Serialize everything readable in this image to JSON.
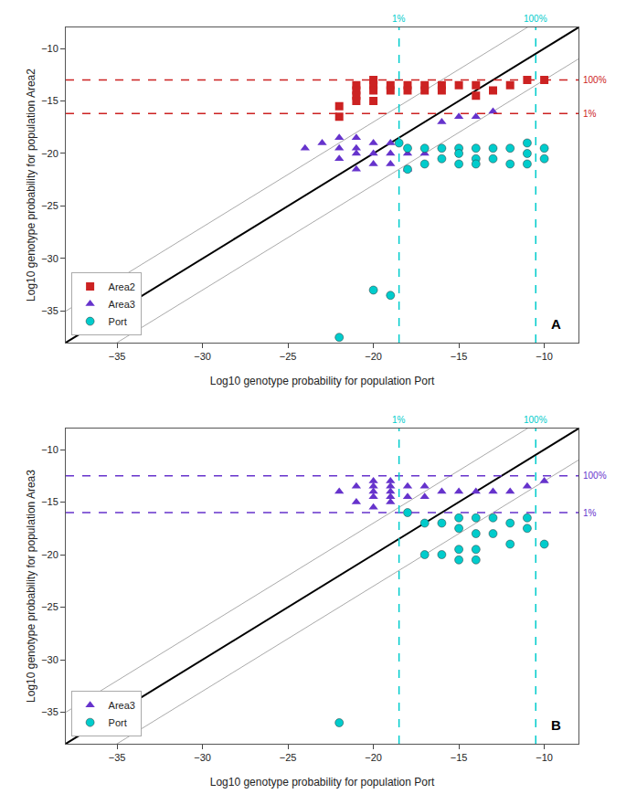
{
  "chart_data": [
    {
      "type": "scatter",
      "xlabel": "Log10 genotype probability for population Port",
      "ylabel": "Log10 genotype probability for population Area2",
      "xlim": [
        -38,
        -8
      ],
      "ylim": [
        -38,
        -8
      ],
      "xticks": [
        -35,
        -30,
        -25,
        -20,
        -15,
        -10
      ],
      "yticks": [
        -35,
        -30,
        -25,
        -20,
        -15,
        -10
      ],
      "grid": false,
      "legend": "lower left",
      "panel_label": "A",
      "diagonal_offset": 3.0,
      "hlines": [
        {
          "value": -13.0,
          "label": "100%",
          "color": "#cc2222",
          "line_style": "dashed"
        },
        {
          "value": -16.2,
          "label": "1%",
          "color": "#cc2222",
          "line_style": "dashed"
        }
      ],
      "vlines": [
        {
          "value": -18.5,
          "label": "1%",
          "color": "#00cccc",
          "line_style": "dashed"
        },
        {
          "value": -10.5,
          "label": "100%",
          "color": "#00cccc",
          "line_style": "dashed"
        }
      ],
      "series": [
        {
          "name": "Area2",
          "color": "#cc2222",
          "marker": "square",
          "x": [
            -22,
            -22,
            -21,
            -21,
            -21,
            -21,
            -20,
            -20,
            -20,
            -20,
            -19,
            -19,
            -18,
            -18,
            -17,
            -17,
            -16,
            -16,
            -15,
            -14,
            -14,
            -13,
            -12,
            -11,
            -10
          ],
          "values": [
            -15.5,
            -16.5,
            -13.5,
            -14.0,
            -14.5,
            -15.0,
            -13.0,
            -13.5,
            -14.0,
            -15.0,
            -13.5,
            -14.0,
            -13.5,
            -14.0,
            -13.5,
            -14.0,
            -13.5,
            -14.0,
            -13.5,
            -13.5,
            -14.5,
            -14.0,
            -13.5,
            -13.0,
            -13.0
          ]
        },
        {
          "name": "Area3",
          "color": "#6633cc",
          "marker": "triangle-up",
          "x": [
            -24,
            -23,
            -22,
            -22,
            -22,
            -21,
            -21,
            -21,
            -21,
            -20,
            -20,
            -20,
            -19,
            -19,
            -19,
            -18,
            -18,
            -17,
            -16,
            -15,
            -14,
            -13
          ],
          "values": [
            -19.5,
            -19.0,
            -18.5,
            -19.5,
            -20.5,
            -18.5,
            -19.5,
            -20.0,
            -21.5,
            -19.0,
            -20.0,
            -21.0,
            -19.0,
            -20.0,
            -21.0,
            -20.0,
            -21.5,
            -20.0,
            -17.0,
            -16.5,
            -16.5,
            -16.0
          ]
        },
        {
          "name": "Port",
          "color": "#00cccc",
          "marker": "circle",
          "x": [
            -22,
            -20,
            -19,
            -18.5,
            -18,
            -18,
            -17,
            -17,
            -16,
            -16,
            -15,
            -15,
            -15,
            -14,
            -14,
            -14,
            -13,
            -13,
            -12,
            -12,
            -11,
            -11,
            -11,
            -10,
            -10
          ],
          "values": [
            -37.5,
            -33.0,
            -33.5,
            -19.0,
            -19.5,
            -21.5,
            -19.5,
            -21.0,
            -19.5,
            -20.5,
            -19.5,
            -20.0,
            -21.0,
            -19.5,
            -20.5,
            -21.0,
            -19.5,
            -20.5,
            -19.5,
            -21.0,
            -19.0,
            -20.0,
            -21.0,
            -19.5,
            -20.5
          ]
        }
      ]
    },
    {
      "type": "scatter",
      "xlabel": "Log10 genotype probability for population Port",
      "ylabel": "Log10 genotype probability for population Area3",
      "xlim": [
        -38,
        -8
      ],
      "ylim": [
        -38,
        -8
      ],
      "xticks": [
        -35,
        -30,
        -25,
        -20,
        -15,
        -10
      ],
      "yticks": [
        -35,
        -30,
        -25,
        -20,
        -15,
        -10
      ],
      "grid": false,
      "legend": "lower left",
      "panel_label": "B",
      "diagonal_offset": 3.0,
      "hlines": [
        {
          "value": -12.5,
          "label": "100%",
          "color": "#6633cc",
          "line_style": "dashed"
        },
        {
          "value": -16.0,
          "label": "1%",
          "color": "#6633cc",
          "line_style": "dashed"
        }
      ],
      "vlines": [
        {
          "value": -18.5,
          "label": "1%",
          "color": "#00cccc",
          "line_style": "dashed"
        },
        {
          "value": -10.5,
          "label": "100%",
          "color": "#00cccc",
          "line_style": "dashed"
        }
      ],
      "series": [
        {
          "name": "Area3",
          "color": "#6633cc",
          "marker": "triangle-up",
          "x": [
            -22,
            -21,
            -21,
            -20,
            -20,
            -20,
            -20,
            -20,
            -19,
            -19,
            -19,
            -19,
            -19,
            -18,
            -18,
            -17,
            -17,
            -16,
            -15,
            -14,
            -13,
            -12,
            -11,
            -10
          ],
          "values": [
            -14.0,
            -13.5,
            -15.0,
            -13.0,
            -13.5,
            -14.0,
            -14.5,
            -15.5,
            -13.0,
            -13.5,
            -14.0,
            -14.5,
            -15.0,
            -13.5,
            -14.5,
            -13.5,
            -14.5,
            -14.0,
            -14.0,
            -14.0,
            -14.0,
            -14.0,
            -13.5,
            -13.0
          ]
        },
        {
          "name": "Port",
          "color": "#00cccc",
          "marker": "circle",
          "x": [
            -22,
            -18,
            -17,
            -17,
            -16,
            -16,
            -15,
            -15,
            -15,
            -15,
            -14,
            -14,
            -14,
            -14,
            -13,
            -13,
            -12,
            -12,
            -11,
            -11,
            -10
          ],
          "values": [
            -36.0,
            -16.0,
            -17.0,
            -20.0,
            -17.0,
            -20.0,
            -16.5,
            -17.5,
            -19.5,
            -20.5,
            -16.5,
            -18.0,
            -19.5,
            -20.5,
            -16.5,
            -18.0,
            -17.0,
            -19.0,
            -16.5,
            -17.5,
            -19.0
          ]
        }
      ]
    }
  ]
}
